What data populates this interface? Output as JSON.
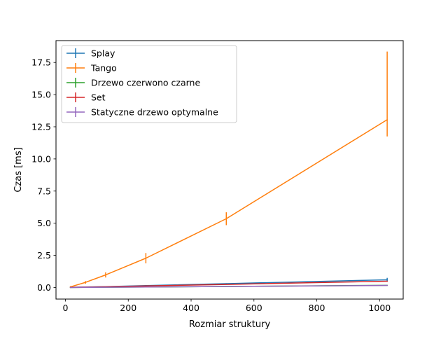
{
  "chart_data": {
    "type": "line",
    "title": "",
    "xlabel": "Rozmiar struktury",
    "ylabel": "Czas [ms]",
    "xlim": [
      -30,
      1075
    ],
    "ylim": [
      -0.9,
      19.2
    ],
    "xticks": [
      0,
      200,
      400,
      600,
      800,
      1000
    ],
    "xtick_labels": [
      "0",
      "200",
      "400",
      "600",
      "800",
      "1000"
    ],
    "yticks": [
      0.0,
      2.5,
      5.0,
      7.5,
      10.0,
      12.5,
      15.0,
      17.5
    ],
    "ytick_labels": [
      "0.0",
      "2.5",
      "5.0",
      "7.5",
      "10.0",
      "12.5",
      "15.0",
      "17.5"
    ],
    "grid": false,
    "legend_position": "top-left",
    "error_bars": true,
    "x": [
      16,
      64,
      128,
      256,
      512,
      1024
    ],
    "series": [
      {
        "name": "Splay",
        "color": "#1f77b4",
        "values": [
          0.01,
          0.04,
          0.07,
          0.15,
          0.3,
          0.6
        ],
        "errors": [
          0.0,
          0.0,
          0.0,
          0.02,
          0.03,
          0.15
        ]
      },
      {
        "name": "Tango",
        "color": "#ff7f0e",
        "values": [
          0.05,
          0.4,
          0.98,
          2.28,
          5.35,
          13.05
        ],
        "errors": [
          0.05,
          0.1,
          0.2,
          0.4,
          0.5,
          [
            1.3,
            5.3
          ]
        ]
      },
      {
        "name": "Drzewo czerwono czarne",
        "color": "#2ca02c",
        "values": [
          0.0,
          0.01,
          0.02,
          0.04,
          0.08,
          0.17
        ],
        "errors": [
          0.0,
          0.0,
          0.0,
          0.0,
          0.0,
          0.0
        ]
      },
      {
        "name": "Set",
        "color": "#d62728",
        "values": [
          0.01,
          0.03,
          0.06,
          0.12,
          0.24,
          0.49
        ],
        "errors": [
          0.0,
          0.0,
          0.0,
          0.0,
          0.0,
          0.03
        ]
      },
      {
        "name": "Statyczne drzewo optymalne",
        "color": "#9467bd",
        "values": [
          0.0,
          0.01,
          0.02,
          0.04,
          0.08,
          0.16
        ],
        "errors": [
          0.0,
          0.0,
          0.0,
          0.0,
          0.0,
          0.0
        ]
      }
    ]
  }
}
